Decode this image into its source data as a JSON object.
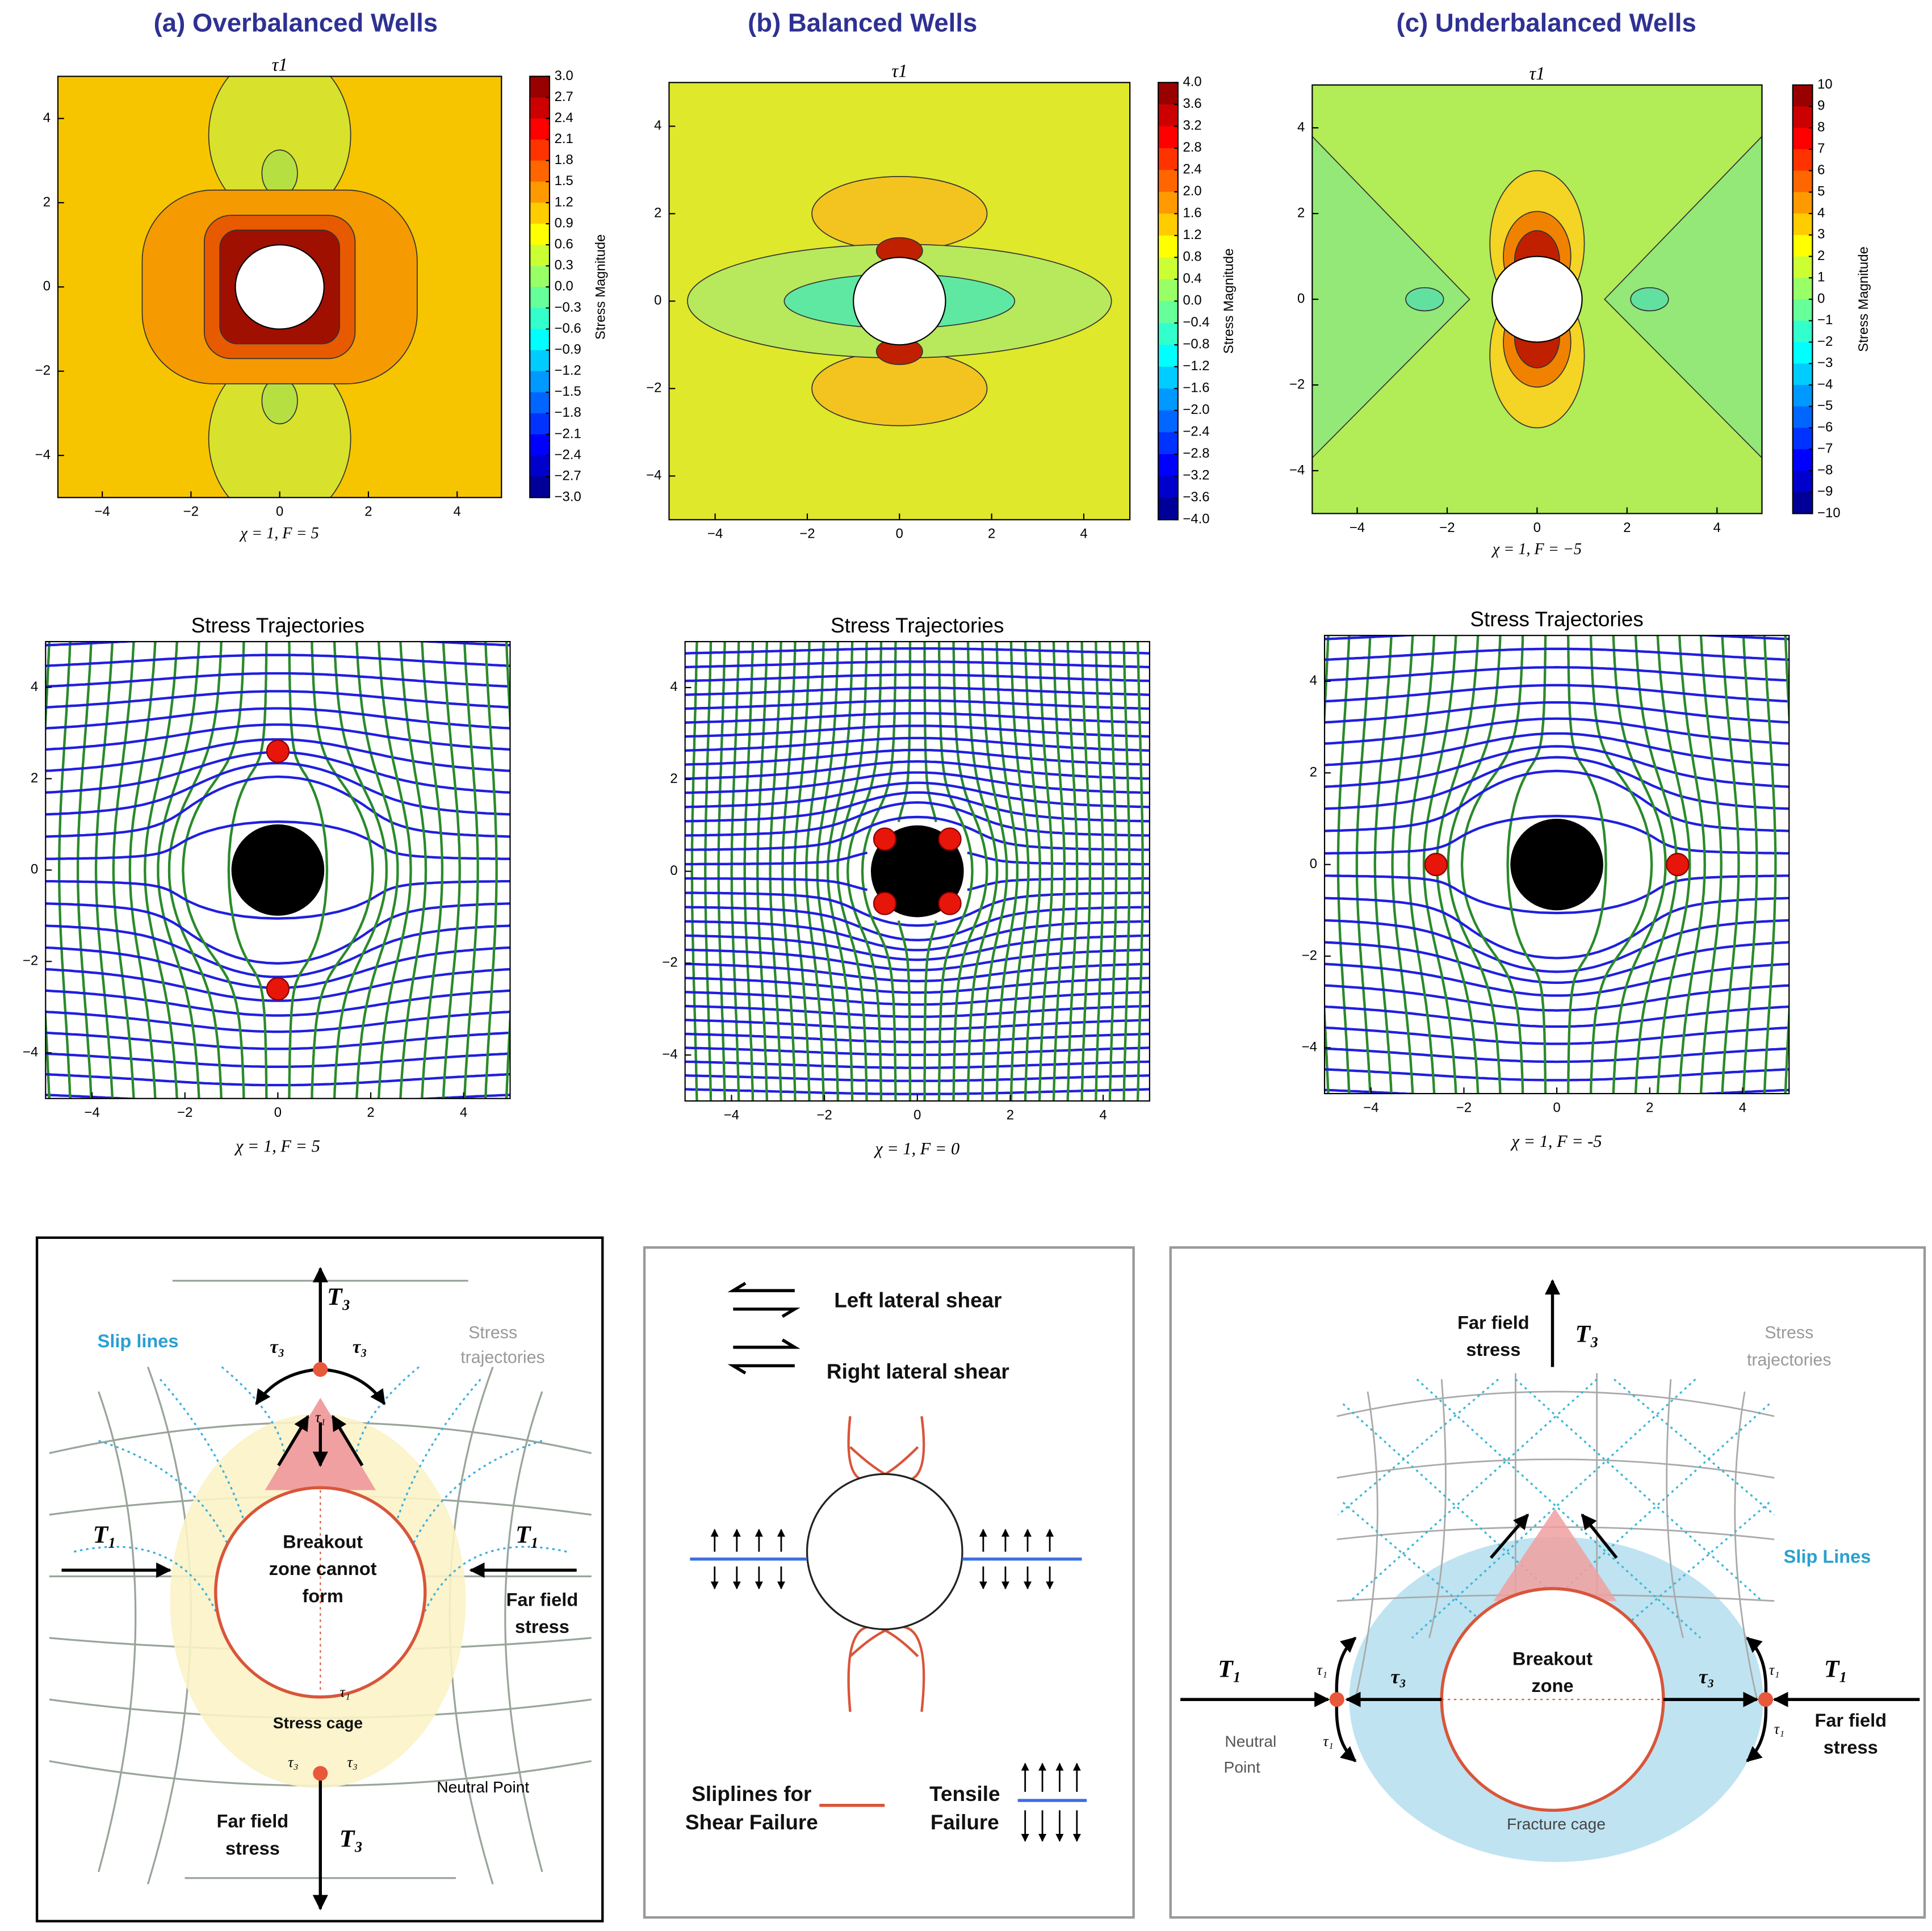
{
  "panels": [
    {
      "heading": "(a) Overbalanced  Wells",
      "contour": {
        "title": "τ1",
        "colorbar_ticks": [
          "3.0",
          "2.7",
          "2.4",
          "2.1",
          "1.8",
          "1.5",
          "1.2",
          "0.9",
          "0.6",
          "0.3",
          "0.0",
          "−0.3",
          "−0.6",
          "−0.9",
          "−1.2",
          "−1.5",
          "−1.8",
          "−2.1",
          "−2.4",
          "−2.7",
          "−3.0"
        ],
        "colorbar_label": "Stress Magnitude",
        "xticks": [
          "−4",
          "−2",
          "0",
          "2",
          "4"
        ],
        "yticks": [
          "4",
          "2",
          "0",
          "−2",
          "−4"
        ],
        "xlabel": "χ = 1, F = 5"
      },
      "trajectories": {
        "title": "Stress Trajectories",
        "xticks": [
          "−4",
          "−2",
          "0",
          "2",
          "4"
        ],
        "yticks": [
          "4",
          "2",
          "0",
          "−2",
          "−4"
        ],
        "xlabel": "χ = 1, F = 5"
      }
    },
    {
      "heading": "(b) Balanced  Wells",
      "contour": {
        "title": "τ1",
        "colorbar_ticks": [
          "4.0",
          "3.6",
          "3.2",
          "2.8",
          "2.4",
          "2.0",
          "1.6",
          "1.2",
          "0.8",
          "0.4",
          "0.0",
          "−0.4",
          "−0.8",
          "−1.2",
          "−1.6",
          "−2.0",
          "−2.4",
          "−2.8",
          "−3.2",
          "−3.6",
          "−4.0"
        ],
        "colorbar_label": "Stress Magnitude",
        "xticks": [
          "−4",
          "−2",
          "0",
          "2",
          "4"
        ],
        "yticks": [
          "4",
          "2",
          "0",
          "−2",
          "−4"
        ]
      },
      "trajectories": {
        "title": "Stress Trajectories",
        "xticks": [
          "−4",
          "−2",
          "0",
          "2",
          "4"
        ],
        "yticks": [
          "4",
          "2",
          "0",
          "−2",
          "−4"
        ],
        "xlabel": "χ = 1, F = 0"
      }
    },
    {
      "heading": "(c) Underbalanced  Wells",
      "contour": {
        "title": "τ1",
        "colorbar_ticks": [
          "10",
          "9",
          "8",
          "7",
          "6",
          "5",
          "4",
          "3",
          "2",
          "1",
          "0",
          "−1",
          "−2",
          "−3",
          "−4",
          "−5",
          "−6",
          "−7",
          "−8",
          "−9",
          "−10"
        ],
        "colorbar_label": "Stress Magnitude",
        "xticks": [
          "−4",
          "−2",
          "0",
          "2",
          "4"
        ],
        "yticks": [
          "4",
          "2",
          "0",
          "−2",
          "−4"
        ],
        "xlabel": "χ = 1, F = −5"
      },
      "trajectories": {
        "title": "Stress Trajectories",
        "xticks": [
          "−4",
          "−2",
          "0",
          "2",
          "4"
        ],
        "yticks": [
          "4",
          "2",
          "0",
          "−2",
          "−4"
        ],
        "xlabel": "χ = 1, F = -5"
      }
    }
  ],
  "diagrams": [
    {
      "labels": [
        "T₃",
        "τ₃",
        "τ₃",
        "Slip lines",
        "Stress",
        "trajectories",
        "τ₁",
        "Breakout",
        "zone cannot",
        "form",
        "T₁",
        "T₁",
        "Far field",
        "stress",
        "τ₁",
        "Stress cage",
        "τ₃",
        "τ₃",
        "Neutral Point",
        "Far field",
        "stress",
        "T₃"
      ]
    },
    {
      "labels": [
        "Left lateral shear",
        "Right lateral shear",
        "Sliplines for",
        "Shear Failure",
        "Tensile",
        "Failure"
      ]
    },
    {
      "labels": [
        "Far field",
        "stress",
        "T₃",
        "Stress",
        "trajectories",
        "Slip Lines",
        "Breakout",
        "zone",
        "T₁",
        "τ₁",
        "τ₃",
        "τ₃",
        "τ₁",
        "T₁",
        "Neutral",
        "Point",
        "τ₁",
        "τ₁",
        "Far field",
        "stress",
        "Fracture cage"
      ]
    }
  ]
}
